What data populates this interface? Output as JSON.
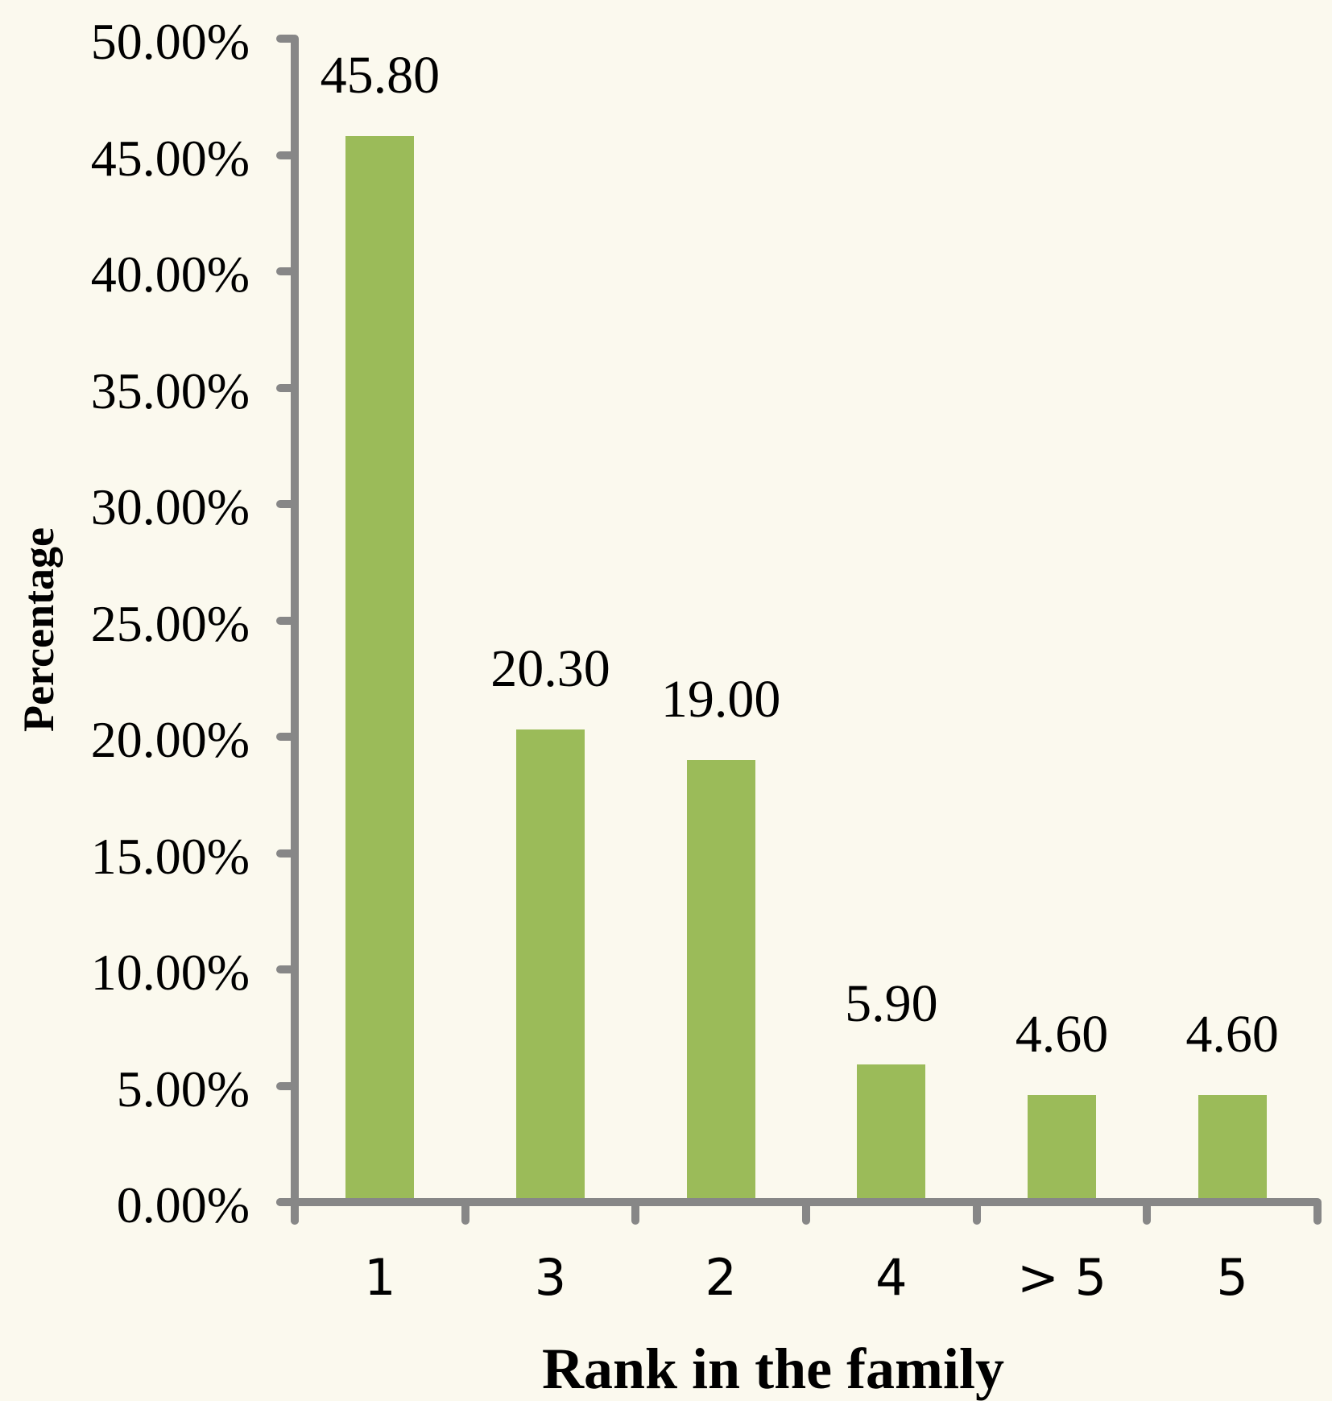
{
  "chart_data": {
    "type": "bar",
    "title": "",
    "xlabel": "Rank in the family",
    "ylabel": "Percentage",
    "categories": [
      "1",
      "3",
      "2",
      "4",
      "> 5",
      "5"
    ],
    "values": [
      45.8,
      20.3,
      19.0,
      5.9,
      4.6,
      4.6
    ],
    "data_labels": [
      "45.80",
      "20.30",
      "19.00",
      "5.90",
      "4.60",
      "4.60"
    ],
    "ylim": [
      0,
      50
    ],
    "yticks": [
      0,
      5,
      10,
      15,
      20,
      25,
      30,
      35,
      40,
      45,
      50
    ],
    "ytick_labels": [
      "0.00%",
      "5.00%",
      "10.00%",
      "15.00%",
      "20.00%",
      "25.00%",
      "30.00%",
      "35.00%",
      "40.00%",
      "45.00%",
      "50.00%"
    ],
    "grid": false,
    "legend": null
  },
  "colors": {
    "bar": "#9BBB59",
    "axis": "#878787",
    "background": "#FBF9EE",
    "text": "#000000"
  }
}
